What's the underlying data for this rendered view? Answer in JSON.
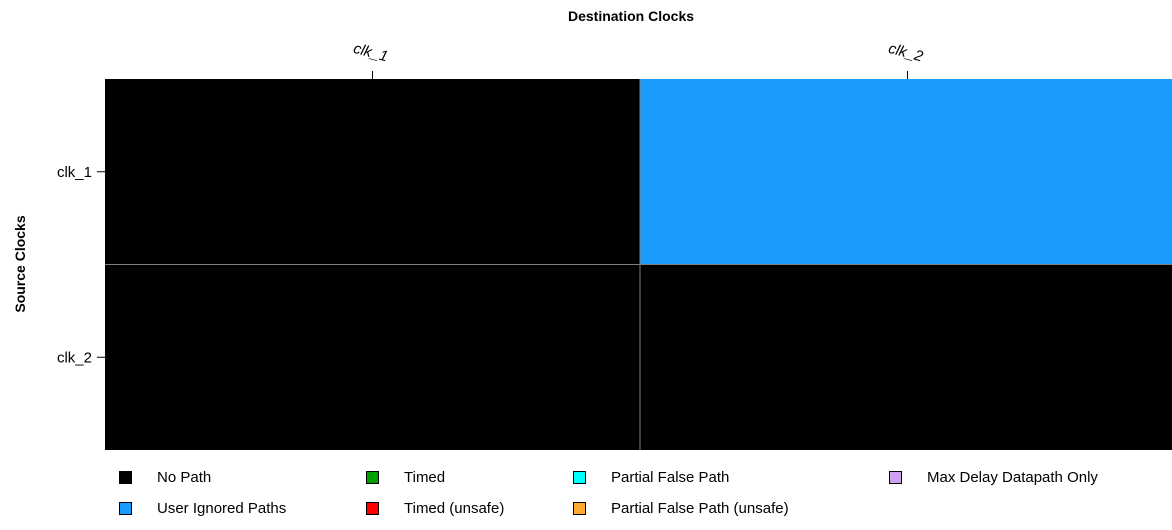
{
  "chart_data": {
    "type": "heatmap",
    "xlabel": "Destination Clocks",
    "ylabel": "Source Clocks",
    "x_categories": [
      "clk_1",
      "clk_2"
    ],
    "y_categories": [
      "clk_1",
      "clk_2"
    ],
    "cells": [
      [
        "No Path",
        "User Ignored Paths"
      ],
      [
        "No Path",
        "No Path"
      ]
    ],
    "legend": [
      {
        "label": "No Path",
        "color": "#000000"
      },
      {
        "label": "Timed",
        "color": "#00a000"
      },
      {
        "label": "Partial False Path",
        "color": "#00ffff"
      },
      {
        "label": "Max Delay Datapath Only",
        "color": "#d0a0f0"
      },
      {
        "label": "User Ignored Paths",
        "color": "#1a9cff"
      },
      {
        "label": "Timed (unsafe)",
        "color": "#ff0000"
      },
      {
        "label": "Partial False Path (unsafe)",
        "color": "#ffaa30"
      }
    ],
    "grid_color": "#808080"
  }
}
